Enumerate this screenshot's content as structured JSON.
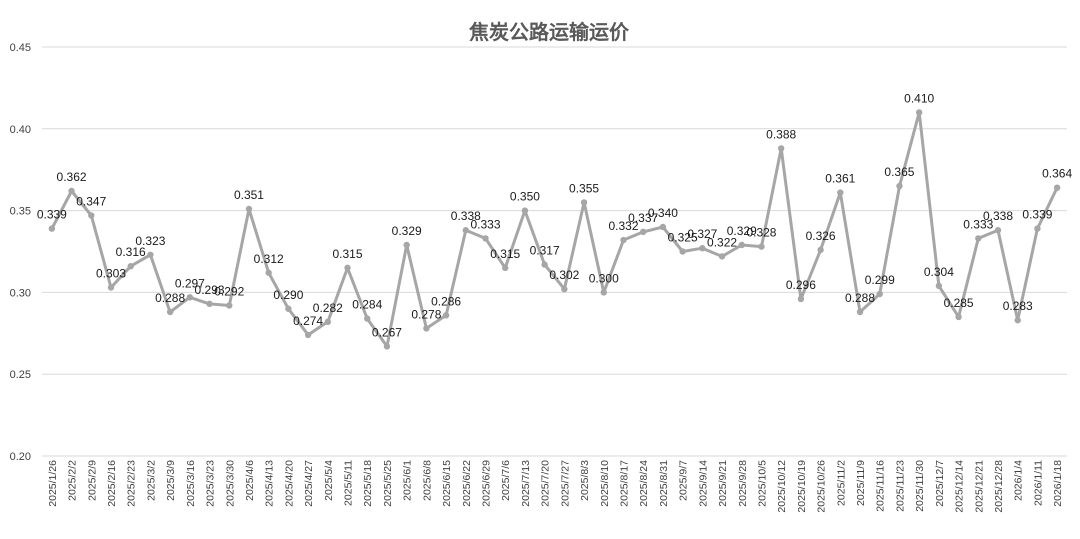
{
  "chart_data": {
    "type": "line",
    "title": "焦炭公路运输运价",
    "xlabel": "",
    "ylabel": "",
    "ylim": [
      0.2,
      0.45
    ],
    "yticks": [
      "0.20",
      "0.25",
      "0.30",
      "0.35",
      "0.40",
      "0.45"
    ],
    "grid": true,
    "legend": "none",
    "colors": {
      "line": "#a6a6a6",
      "grid": "#d9d9d9",
      "title": "#595959"
    },
    "categories": [
      "2025/1/26",
      "2025/2/2",
      "2025/2/9",
      "2025/2/16",
      "2025/2/23",
      "2025/3/2",
      "2025/3/9",
      "2025/3/16",
      "2025/3/23",
      "2025/3/30",
      "2025/4/6",
      "2025/4/13",
      "2025/4/20",
      "2025/4/27",
      "2025/5/4",
      "2025/5/11",
      "2025/5/18",
      "2025/5/25",
      "2025/6/1",
      "2025/6/8",
      "2025/6/15",
      "2025/6/22",
      "2025/6/29",
      "2025/7/6",
      "2025/7/13",
      "2025/7/20",
      "2025/7/27",
      "2025/8/3",
      "2025/8/10",
      "2025/8/17",
      "2025/8/24",
      "2025/8/31",
      "2025/9/7",
      "2025/9/14",
      "2025/9/21",
      "2025/9/28",
      "2025/10/5",
      "2025/10/12",
      "2025/10/19",
      "2025/10/26",
      "2025/11/2",
      "2025/11/9",
      "2025/11/16",
      "2025/11/23",
      "2025/11/30",
      "2025/12/7",
      "2025/12/14",
      "2025/12/21",
      "2025/12/28",
      "2026/1/4",
      "2026/1/11",
      "2026/1/18"
    ],
    "values": [
      0.339,
      0.362,
      0.347,
      0.303,
      0.316,
      0.323,
      0.288,
      0.297,
      0.293,
      0.292,
      0.351,
      0.312,
      0.29,
      0.274,
      0.282,
      0.315,
      0.284,
      0.267,
      0.329,
      0.278,
      0.286,
      0.338,
      0.333,
      0.315,
      0.35,
      0.317,
      0.302,
      0.355,
      0.3,
      0.332,
      0.337,
      0.34,
      0.325,
      0.327,
      0.322,
      0.329,
      0.328,
      0.388,
      0.296,
      0.326,
      0.361,
      0.288,
      0.299,
      0.365,
      0.41,
      0.304,
      0.285,
      0.333,
      0.338,
      0.283,
      0.339,
      0.364
    ],
    "data_labels": [
      "0.339",
      "0.362",
      "0.347",
      "0.303",
      "0.316",
      "0.323",
      "0.288",
      "0.297",
      "0.293",
      "0.292",
      "0.351",
      "0.312",
      "0.290",
      "0.274",
      "0.282",
      "0.315",
      "0.284",
      "0.267",
      "0.329",
      "0.278",
      "0.286",
      "0.338",
      "0.333",
      "0.315",
      "0.350",
      "0.317",
      "0.302",
      "0.355",
      "0.300",
      "0.332",
      "0.337",
      "0.340",
      "0.325",
      "0.327",
      "0.322",
      "0.329",
      "0.328",
      "0.388",
      "0.296",
      "0.326",
      "0.361",
      "0.288",
      "0.299",
      "0.365",
      "0.410",
      "0.304",
      "0.285",
      "0.333",
      "0.338",
      "0.283",
      "0.339",
      "0.364"
    ]
  }
}
